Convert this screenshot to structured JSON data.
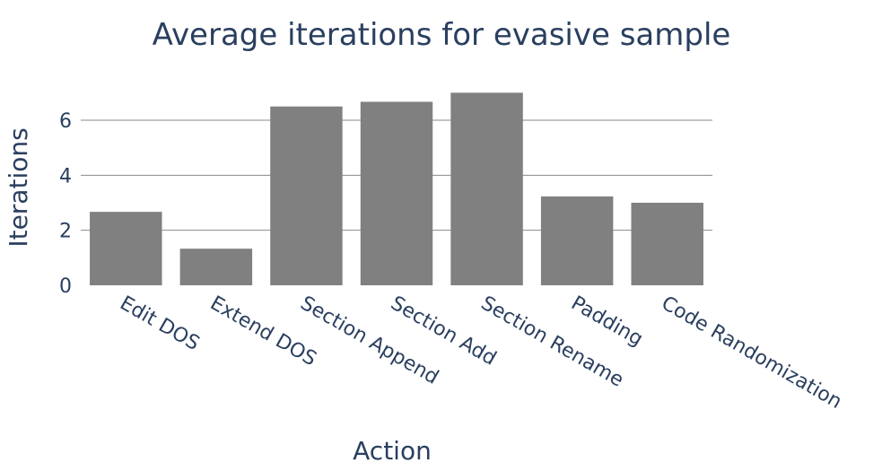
{
  "chart_data": {
    "type": "bar",
    "title": "Average iterations for evasive sample",
    "xlabel": "Action",
    "ylabel": "Iterations",
    "categories": [
      "Edit DOS",
      "Extend DOS",
      "Section Append",
      "Section Add",
      "Section Rename",
      "Padding",
      "Code Randomization"
    ],
    "values": [
      2.67,
      1.33,
      6.5,
      6.67,
      7.0,
      3.23,
      3.0
    ],
    "ylim": [
      0,
      7.37
    ],
    "yticks": [
      0,
      2,
      4,
      6
    ],
    "grid": true,
    "bar_color": "#808080"
  }
}
